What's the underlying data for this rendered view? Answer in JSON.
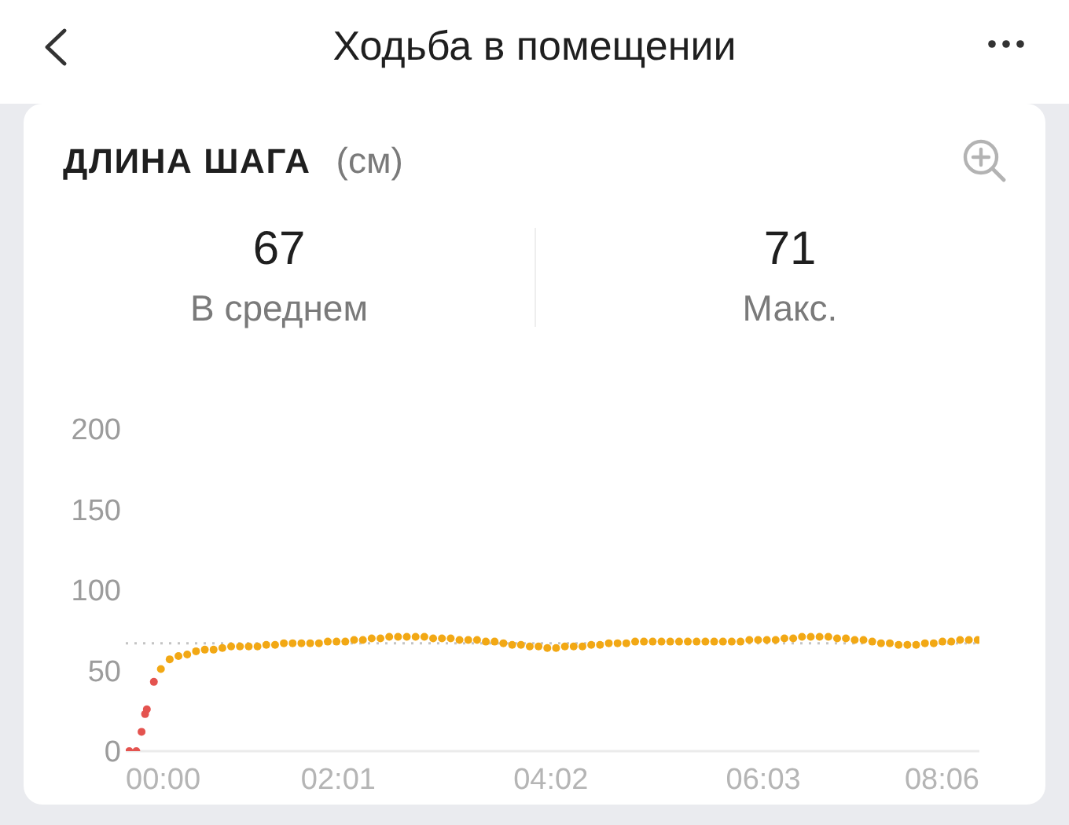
{
  "chart_data": {
    "type": "scatter",
    "title": "ДЛИНА ШАГА",
    "subtitle": "(см)",
    "annotations": [
      "Ходьба в помещении",
      "67",
      "В среднем",
      "71",
      "Макс."
    ],
    "xlim": [
      0,
      486
    ],
    "xticks": [
      {
        "value": 0,
        "label": "00:00"
      },
      {
        "value": 121,
        "label": "02:01"
      },
      {
        "value": 242,
        "label": "04:02"
      },
      {
        "value": 363,
        "label": "06:03"
      },
      {
        "value": 486,
        "label": "08:06"
      }
    ],
    "ylim": [
      0,
      200
    ],
    "yticks": [
      0,
      50,
      100,
      150,
      200
    ],
    "marker": "circle",
    "ref_lines": [
      {
        "axis": "y",
        "value": 67,
        "color": "#c4c4c4",
        "line_style": "dotted"
      }
    ],
    "series": [
      {
        "color": "#e4534f",
        "x": [
          2,
          6,
          9,
          11,
          12,
          16
        ],
        "values": [
          0,
          0,
          12,
          23,
          26,
          43
        ]
      },
      {
        "color": "#f2a814",
        "x": [
          20,
          25,
          30,
          35,
          40,
          45,
          50,
          55,
          60,
          65,
          70,
          75,
          80,
          85,
          90,
          95,
          100,
          105,
          110,
          115,
          120,
          125,
          130,
          135,
          140,
          145,
          150,
          155,
          160,
          165,
          170,
          175,
          180,
          185,
          190,
          195,
          200,
          205,
          210,
          215,
          220,
          225,
          230,
          235,
          240,
          245,
          250,
          255,
          260,
          265,
          270,
          275,
          280,
          285,
          290,
          295,
          300,
          305,
          310,
          315,
          320,
          325,
          330,
          335,
          340,
          345,
          350,
          355,
          360,
          365,
          370,
          375,
          380,
          385,
          390,
          395,
          400,
          405,
          410,
          415,
          420,
          425,
          430,
          435,
          440,
          445,
          450,
          455,
          460,
          465,
          470,
          475,
          480,
          485
        ],
        "values": [
          51,
          57,
          59,
          60,
          62,
          63,
          63,
          64,
          65,
          65,
          65,
          65,
          66,
          66,
          67,
          67,
          67,
          67,
          67,
          68,
          68,
          68,
          69,
          69,
          70,
          70,
          71,
          71,
          71,
          71,
          71,
          70,
          70,
          70,
          69,
          69,
          69,
          68,
          68,
          67,
          66,
          66,
          65,
          65,
          64,
          64,
          65,
          65,
          65,
          66,
          66,
          67,
          67,
          67,
          68,
          68,
          68,
          68,
          68,
          68,
          68,
          68,
          68,
          68,
          68,
          68,
          68,
          69,
          69,
          69,
          69,
          70,
          70,
          71,
          71,
          71,
          71,
          70,
          70,
          69,
          69,
          68,
          67,
          67,
          66,
          66,
          66,
          67,
          67,
          68,
          68,
          69,
          69,
          69
        ]
      }
    ]
  }
}
